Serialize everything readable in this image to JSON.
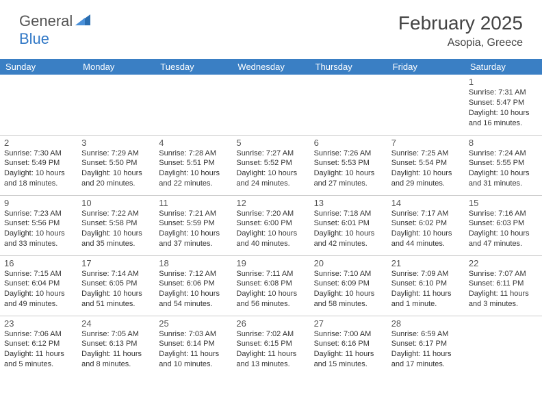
{
  "logo": {
    "text_general": "General",
    "text_blue": "Blue"
  },
  "title": "February 2025",
  "location": "Asopia, Greece",
  "colors": {
    "header_bg": "#3a7fc4",
    "header_text": "#ffffff",
    "logo_gray": "#555555",
    "logo_blue": "#3178c6",
    "cell_border": "#cccccc",
    "body_text": "#333333"
  },
  "day_headers": [
    "Sunday",
    "Monday",
    "Tuesday",
    "Wednesday",
    "Thursday",
    "Friday",
    "Saturday"
  ],
  "weeks": [
    [
      null,
      null,
      null,
      null,
      null,
      null,
      {
        "n": "1",
        "sunrise": "7:31 AM",
        "sunset": "5:47 PM",
        "daylight": "10 hours and 16 minutes."
      }
    ],
    [
      {
        "n": "2",
        "sunrise": "7:30 AM",
        "sunset": "5:49 PM",
        "daylight": "10 hours and 18 minutes."
      },
      {
        "n": "3",
        "sunrise": "7:29 AM",
        "sunset": "5:50 PM",
        "daylight": "10 hours and 20 minutes."
      },
      {
        "n": "4",
        "sunrise": "7:28 AM",
        "sunset": "5:51 PM",
        "daylight": "10 hours and 22 minutes."
      },
      {
        "n": "5",
        "sunrise": "7:27 AM",
        "sunset": "5:52 PM",
        "daylight": "10 hours and 24 minutes."
      },
      {
        "n": "6",
        "sunrise": "7:26 AM",
        "sunset": "5:53 PM",
        "daylight": "10 hours and 27 minutes."
      },
      {
        "n": "7",
        "sunrise": "7:25 AM",
        "sunset": "5:54 PM",
        "daylight": "10 hours and 29 minutes."
      },
      {
        "n": "8",
        "sunrise": "7:24 AM",
        "sunset": "5:55 PM",
        "daylight": "10 hours and 31 minutes."
      }
    ],
    [
      {
        "n": "9",
        "sunrise": "7:23 AM",
        "sunset": "5:56 PM",
        "daylight": "10 hours and 33 minutes."
      },
      {
        "n": "10",
        "sunrise": "7:22 AM",
        "sunset": "5:58 PM",
        "daylight": "10 hours and 35 minutes."
      },
      {
        "n": "11",
        "sunrise": "7:21 AM",
        "sunset": "5:59 PM",
        "daylight": "10 hours and 37 minutes."
      },
      {
        "n": "12",
        "sunrise": "7:20 AM",
        "sunset": "6:00 PM",
        "daylight": "10 hours and 40 minutes."
      },
      {
        "n": "13",
        "sunrise": "7:18 AM",
        "sunset": "6:01 PM",
        "daylight": "10 hours and 42 minutes."
      },
      {
        "n": "14",
        "sunrise": "7:17 AM",
        "sunset": "6:02 PM",
        "daylight": "10 hours and 44 minutes."
      },
      {
        "n": "15",
        "sunrise": "7:16 AM",
        "sunset": "6:03 PM",
        "daylight": "10 hours and 47 minutes."
      }
    ],
    [
      {
        "n": "16",
        "sunrise": "7:15 AM",
        "sunset": "6:04 PM",
        "daylight": "10 hours and 49 minutes."
      },
      {
        "n": "17",
        "sunrise": "7:14 AM",
        "sunset": "6:05 PM",
        "daylight": "10 hours and 51 minutes."
      },
      {
        "n": "18",
        "sunrise": "7:12 AM",
        "sunset": "6:06 PM",
        "daylight": "10 hours and 54 minutes."
      },
      {
        "n": "19",
        "sunrise": "7:11 AM",
        "sunset": "6:08 PM",
        "daylight": "10 hours and 56 minutes."
      },
      {
        "n": "20",
        "sunrise": "7:10 AM",
        "sunset": "6:09 PM",
        "daylight": "10 hours and 58 minutes."
      },
      {
        "n": "21",
        "sunrise": "7:09 AM",
        "sunset": "6:10 PM",
        "daylight": "11 hours and 1 minute."
      },
      {
        "n": "22",
        "sunrise": "7:07 AM",
        "sunset": "6:11 PM",
        "daylight": "11 hours and 3 minutes."
      }
    ],
    [
      {
        "n": "23",
        "sunrise": "7:06 AM",
        "sunset": "6:12 PM",
        "daylight": "11 hours and 5 minutes."
      },
      {
        "n": "24",
        "sunrise": "7:05 AM",
        "sunset": "6:13 PM",
        "daylight": "11 hours and 8 minutes."
      },
      {
        "n": "25",
        "sunrise": "7:03 AM",
        "sunset": "6:14 PM",
        "daylight": "11 hours and 10 minutes."
      },
      {
        "n": "26",
        "sunrise": "7:02 AM",
        "sunset": "6:15 PM",
        "daylight": "11 hours and 13 minutes."
      },
      {
        "n": "27",
        "sunrise": "7:00 AM",
        "sunset": "6:16 PM",
        "daylight": "11 hours and 15 minutes."
      },
      {
        "n": "28",
        "sunrise": "6:59 AM",
        "sunset": "6:17 PM",
        "daylight": "11 hours and 17 minutes."
      },
      null
    ]
  ],
  "labels": {
    "sunrise": "Sunrise:",
    "sunset": "Sunset:",
    "daylight": "Daylight:"
  }
}
